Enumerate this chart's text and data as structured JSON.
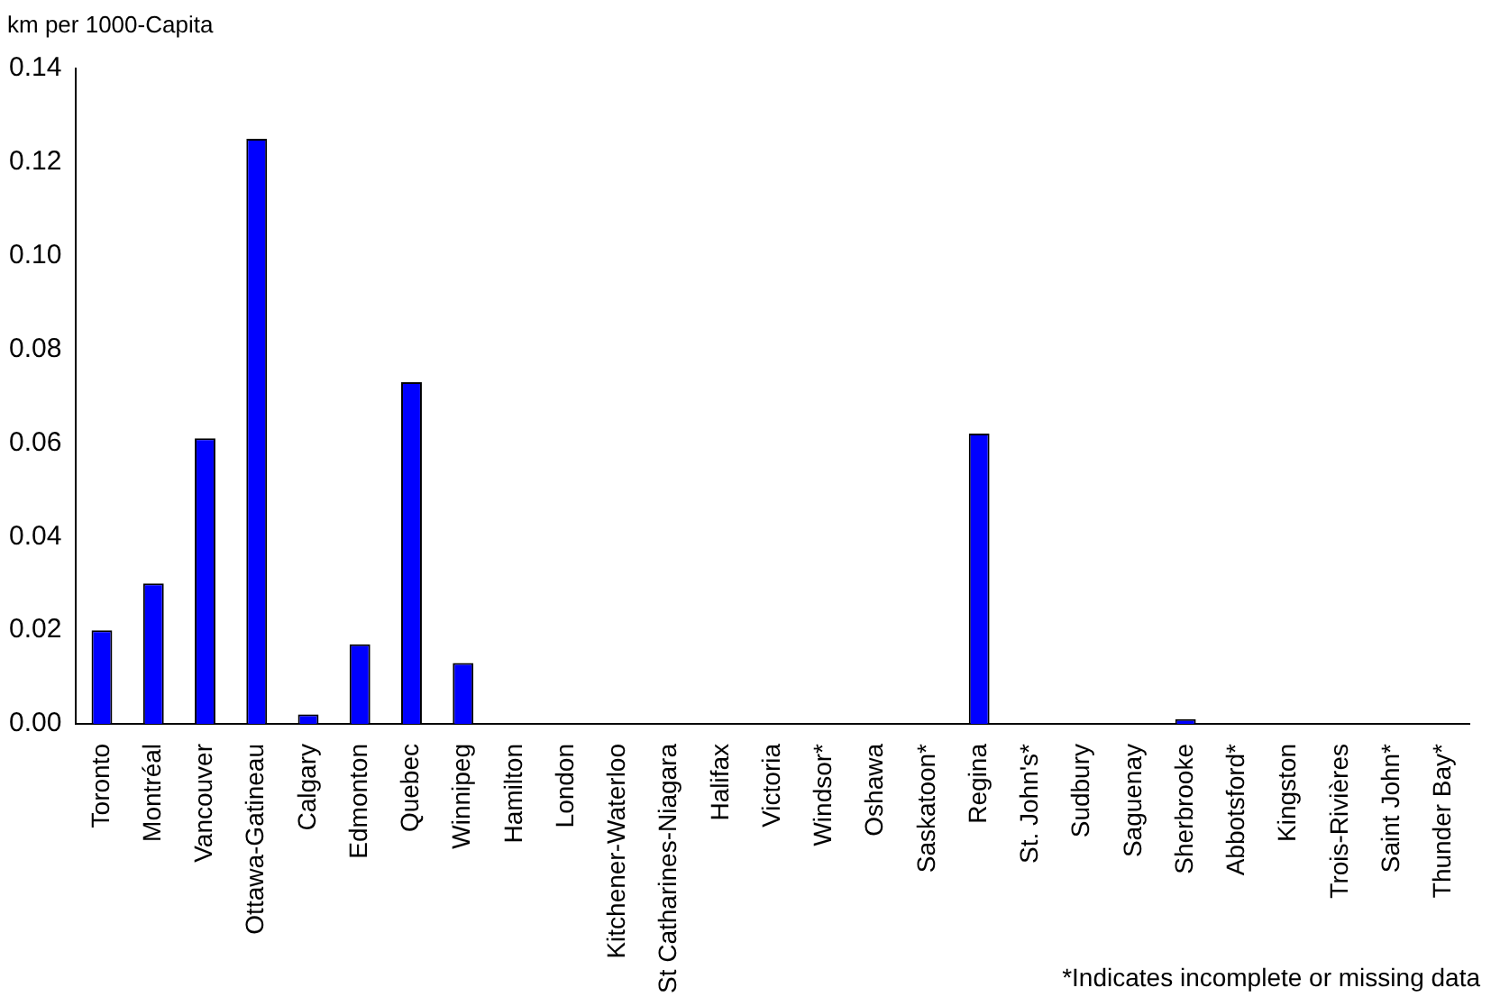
{
  "chart_data": {
    "type": "bar",
    "ylabel": "km per 1000-Capita",
    "categories": [
      "Toronto",
      "Montréal",
      "Vancouver",
      "Ottawa-Gatineau",
      "Calgary",
      "Edmonton",
      "Quebec",
      "Winnipeg",
      "Hamilton",
      "London",
      "Kitchener-Waterloo",
      "St Catharines-Niagara",
      "Halifax",
      "Victoria",
      "Windsor*",
      "Oshawa",
      "Saskatoon*",
      "Regina",
      "St. John's*",
      "Sudbury",
      "Saguenay",
      "Sherbrooke",
      "Abbotsford*",
      "Kingston",
      "Trois-Rivières",
      "Saint John*",
      "Thunder Bay*"
    ],
    "values": [
      0.02,
      0.03,
      0.061,
      0.125,
      0.002,
      0.017,
      0.073,
      0.013,
      0,
      0,
      0,
      0,
      0,
      0,
      0,
      0,
      0,
      0.062,
      0,
      0,
      0,
      0.001,
      0,
      0,
      0,
      0,
      0
    ],
    "color": "#0000ff",
    "ylim": [
      0,
      0.14
    ],
    "yticks": [
      {
        "value": 0,
        "label": "0.00"
      },
      {
        "value": 0.02,
        "label": "0.02"
      },
      {
        "value": 0.04,
        "label": "0.04"
      },
      {
        "value": 0.06,
        "label": "0.06"
      },
      {
        "value": 0.08,
        "label": "0.08"
      },
      {
        "value": 0.1,
        "label": "0.10"
      },
      {
        "value": 0.12,
        "label": "0.12"
      },
      {
        "value": 0.14,
        "label": "0.14"
      }
    ],
    "grid": false,
    "legend": false,
    "annotations": [
      "*Indicates incomplete or missing data"
    ]
  }
}
